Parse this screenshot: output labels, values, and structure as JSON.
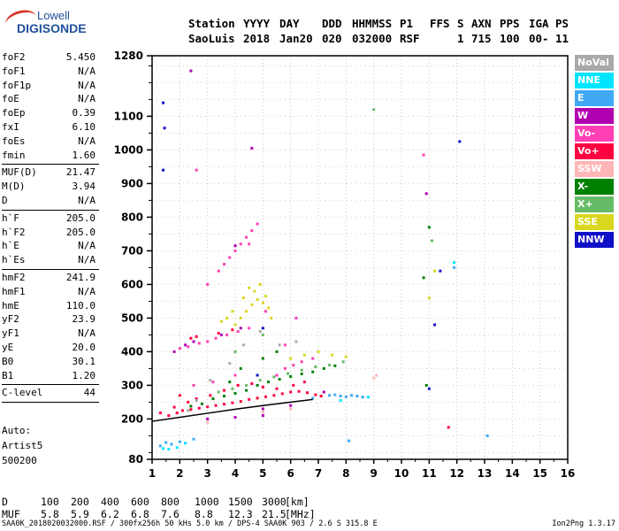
{
  "logo": {
    "line1": "Lowell",
    "line2": "DIGISONDE"
  },
  "header": {
    "labels": [
      "Station",
      "YYYY",
      "DAY",
      "DDD",
      "HHMMSS",
      "P1",
      "FFS",
      "S",
      "AXN",
      "PPS",
      "IGA",
      "PS"
    ],
    "values": [
      "SaoLuis",
      "2018",
      "Jan20",
      "020",
      "032000",
      "RSF",
      "",
      "1",
      "715",
      "100",
      "00-",
      "11"
    ]
  },
  "params": [
    {
      "name": "foF2",
      "value": "5.450"
    },
    {
      "name": "foF1",
      "value": "N/A"
    },
    {
      "name": "foF1p",
      "value": "N/A"
    },
    {
      "name": "foE",
      "value": "N/A"
    },
    {
      "name": "foEp",
      "value": "0.39"
    },
    {
      "name": "fxI",
      "value": "6.10"
    },
    {
      "name": "foEs",
      "value": "N/A"
    },
    {
      "name": "fmin",
      "value": "1.60"
    },
    {
      "name": "MUF(D)",
      "value": "21.47"
    },
    {
      "name": "M(D)",
      "value": "3.94"
    },
    {
      "name": "D",
      "value": "N/A"
    },
    {
      "name": "h`F",
      "value": "205.0"
    },
    {
      "name": "h`F2",
      "value": "205.0"
    },
    {
      "name": "h`E",
      "value": "N/A"
    },
    {
      "name": "h`Es",
      "value": "N/A"
    },
    {
      "name": "hmF2",
      "value": "241.9"
    },
    {
      "name": "hmF1",
      "value": "N/A"
    },
    {
      "name": "hmE",
      "value": "110.0"
    },
    {
      "name": "yF2",
      "value": "23.9"
    },
    {
      "name": "yF1",
      "value": "N/A"
    },
    {
      "name": "yE",
      "value": "20.0"
    },
    {
      "name": "B0",
      "value": "30.1"
    },
    {
      "name": "B1",
      "value": "1.20"
    },
    {
      "name": "C-level",
      "value": "44"
    }
  ],
  "autoscale": {
    "l1": "Auto:",
    "l2": "Artist5",
    "l3": "500200"
  },
  "legend": [
    {
      "label": "NoVal",
      "color": "#a9a9a9"
    },
    {
      "label": "NNE",
      "color": "#00e5ff"
    },
    {
      "label": "E",
      "color": "#3fa9f5"
    },
    {
      "label": "W",
      "color": "#b000b0"
    },
    {
      "label": "Vo-",
      "color": "#ff3fb4"
    },
    {
      "label": "Vo+",
      "color": "#ff0040"
    },
    {
      "label": "SSW",
      "color": "#ffb6b6"
    },
    {
      "label": "X-",
      "color": "#008000"
    },
    {
      "label": "X+",
      "color": "#66bb66"
    },
    {
      "label": "SSE",
      "color": "#d8d820"
    },
    {
      "label": "NNW",
      "color": "#1010c8"
    }
  ],
  "muf_table": {
    "d_label": "D",
    "d_values": [
      "100",
      "200",
      "400",
      "600",
      "800",
      "1000",
      "1500",
      "3000"
    ],
    "d_unit": "[km]",
    "muf_label": "MUF",
    "muf_values": [
      "5.8",
      "5.9",
      "6.2",
      "6.8",
      "7.6",
      "8.8",
      "12.3",
      "21.5"
    ],
    "muf_unit": "[MHz]"
  },
  "footer": "SAA0K_2018020032000.RSF / 300fx256h 50 kHs 5.0 km / DPS-4 SAA0K 903 / 2.6 S 315.8 E",
  "version": "Ion2Png 1.3.17",
  "chart_data": {
    "type": "scatter",
    "title": "",
    "xlabel": "",
    "ylabel": "",
    "xlim": [
      1,
      16
    ],
    "ylim": [
      80,
      1280
    ],
    "x_ticks": [
      1,
      2,
      3,
      4,
      5,
      6,
      7,
      8,
      9,
      10,
      11,
      12,
      13,
      14,
      15,
      16
    ],
    "y_ticks": [
      80,
      200,
      300,
      400,
      500,
      600,
      700,
      800,
      900,
      1000,
      1100,
      1280
    ],
    "grid": true,
    "legend_position": "right",
    "trace_line": [
      [
        1.0,
        193
      ],
      [
        2.0,
        205
      ],
      [
        3.0,
        217
      ],
      [
        4.0,
        229
      ],
      [
        5.0,
        240
      ],
      [
        6.0,
        250
      ],
      [
        6.8,
        258
      ]
    ],
    "series": [
      {
        "name": "Vo+",
        "points": [
          [
            1.6,
            210
          ],
          [
            1.9,
            218
          ],
          [
            2.1,
            225
          ],
          [
            2.4,
            228
          ],
          [
            2.7,
            232
          ],
          [
            3.0,
            236
          ],
          [
            3.3,
            240
          ],
          [
            3.6,
            244
          ],
          [
            3.9,
            248
          ],
          [
            4.2,
            252
          ],
          [
            4.5,
            258
          ],
          [
            4.8,
            262
          ],
          [
            5.1,
            266
          ],
          [
            5.4,
            270
          ],
          [
            5.7,
            275
          ],
          [
            6.0,
            280
          ],
          [
            6.3,
            282
          ],
          [
            6.6,
            278
          ],
          [
            6.9,
            272
          ],
          [
            7.1,
            268
          ],
          [
            2.3,
            250
          ],
          [
            2.6,
            260
          ],
          [
            3.1,
            270
          ],
          [
            3.6,
            285
          ],
          [
            4.1,
            300
          ],
          [
            4.6,
            305
          ],
          [
            5.0,
            295
          ],
          [
            5.5,
            290
          ],
          [
            6.1,
            300
          ],
          [
            6.5,
            310
          ],
          [
            1.8,
            235
          ],
          [
            2.0,
            270
          ],
          [
            2.4,
            440
          ],
          [
            2.6,
            445
          ],
          [
            3.4,
            455
          ],
          [
            3.9,
            465
          ],
          [
            11.7,
            175
          ],
          [
            1.3,
            218
          ]
        ]
      },
      {
        "name": "Vo-",
        "points": [
          [
            2.0,
            410
          ],
          [
            2.3,
            415
          ],
          [
            2.7,
            425
          ],
          [
            3.0,
            430
          ],
          [
            3.3,
            440
          ],
          [
            3.7,
            450
          ],
          [
            4.1,
            460
          ],
          [
            4.5,
            470
          ],
          [
            3.4,
            640
          ],
          [
            3.6,
            660
          ],
          [
            3.8,
            680
          ],
          [
            4.0,
            700
          ],
          [
            4.2,
            720
          ],
          [
            4.4,
            740
          ],
          [
            4.6,
            760
          ],
          [
            4.8,
            780
          ],
          [
            5.5,
            330
          ],
          [
            5.8,
            350
          ],
          [
            6.1,
            360
          ],
          [
            6.4,
            370
          ],
          [
            6.8,
            380
          ],
          [
            2.5,
            300
          ],
          [
            3.2,
            310
          ],
          [
            4.0,
            330
          ],
          [
            2.6,
            940
          ],
          [
            4.5,
            720
          ],
          [
            5.1,
            520
          ],
          [
            6.2,
            500
          ],
          [
            10.8,
            985
          ],
          [
            5.8,
            420
          ],
          [
            3.0,
            600
          ]
        ]
      },
      {
        "name": "W",
        "points": [
          [
            2.2,
            420
          ],
          [
            2.5,
            430
          ],
          [
            3.5,
            450
          ],
          [
            4.2,
            470
          ],
          [
            3.0,
            200
          ],
          [
            4.0,
            205
          ],
          [
            5.0,
            210
          ],
          [
            2.4,
            1235
          ],
          [
            4.0,
            715
          ],
          [
            5.0,
            230
          ],
          [
            6.0,
            240
          ],
          [
            1.8,
            400
          ],
          [
            7.2,
            280
          ],
          [
            10.9,
            870
          ],
          [
            4.6,
            1005
          ]
        ]
      },
      {
        "name": "X-",
        "points": [
          [
            3.2,
            260
          ],
          [
            3.6,
            268
          ],
          [
            4.0,
            276
          ],
          [
            4.4,
            285
          ],
          [
            4.8,
            300
          ],
          [
            5.2,
            310
          ],
          [
            5.6,
            318
          ],
          [
            6.0,
            326
          ],
          [
            6.4,
            334
          ],
          [
            6.8,
            340
          ],
          [
            7.2,
            350
          ],
          [
            7.6,
            358
          ],
          [
            2.8,
            245
          ],
          [
            2.4,
            238
          ],
          [
            5.0,
            380
          ],
          [
            5.5,
            400
          ],
          [
            4.2,
            350
          ],
          [
            3.8,
            310
          ],
          [
            10.8,
            620
          ],
          [
            10.9,
            300
          ],
          [
            11.0,
            770
          ]
        ]
      },
      {
        "name": "X+",
        "points": [
          [
            3.4,
            280
          ],
          [
            3.9,
            290
          ],
          [
            4.4,
            300
          ],
          [
            4.9,
            315
          ],
          [
            5.4,
            325
          ],
          [
            5.9,
            335
          ],
          [
            6.4,
            345
          ],
          [
            6.9,
            355
          ],
          [
            7.4,
            360
          ],
          [
            7.9,
            370
          ],
          [
            4.0,
            400
          ],
          [
            5.0,
            450
          ],
          [
            9.0,
            1120
          ],
          [
            11.1,
            730
          ]
        ]
      },
      {
        "name": "SSE",
        "points": [
          [
            4.0,
            480
          ],
          [
            4.2,
            500
          ],
          [
            4.4,
            520
          ],
          [
            4.6,
            540
          ],
          [
            4.8,
            555
          ],
          [
            5.0,
            545
          ],
          [
            5.2,
            530
          ],
          [
            3.9,
            520
          ],
          [
            4.3,
            560
          ],
          [
            4.7,
            580
          ],
          [
            5.1,
            565
          ],
          [
            3.7,
            500
          ],
          [
            3.5,
            490
          ],
          [
            4.5,
            590
          ],
          [
            4.9,
            600
          ],
          [
            5.3,
            500
          ],
          [
            6.0,
            380
          ],
          [
            6.5,
            390
          ],
          [
            7.0,
            400
          ],
          [
            7.5,
            390
          ],
          [
            8.0,
            385
          ],
          [
            11.0,
            560
          ],
          [
            11.2,
            640
          ]
        ]
      },
      {
        "name": "E",
        "points": [
          [
            7.4,
            270
          ],
          [
            7.6,
            272
          ],
          [
            7.8,
            268
          ],
          [
            8.0,
            266
          ],
          [
            8.2,
            270
          ],
          [
            8.4,
            268
          ],
          [
            8.6,
            265
          ],
          [
            6.8,
            262
          ],
          [
            1.5,
            130
          ],
          [
            1.7,
            125
          ],
          [
            2.0,
            132
          ],
          [
            1.3,
            120
          ],
          [
            8.1,
            135
          ],
          [
            13.1,
            150
          ],
          [
            11.9,
            650
          ],
          [
            2.5,
            140
          ]
        ]
      },
      {
        "name": "NNE",
        "points": [
          [
            1.4,
            112
          ],
          [
            1.6,
            110
          ],
          [
            1.9,
            115
          ],
          [
            2.2,
            128
          ],
          [
            7.8,
            255
          ],
          [
            8.8,
            265
          ],
          [
            11.9,
            665
          ]
        ]
      },
      {
        "name": "SSW",
        "points": [
          [
            9.0,
            322
          ],
          [
            9.1,
            330
          ],
          [
            3.0,
            190
          ],
          [
            5.0,
            220
          ],
          [
            6.0,
            230
          ]
        ]
      },
      {
        "name": "NNW",
        "points": [
          [
            1.4,
            1140
          ],
          [
            1.45,
            1065
          ],
          [
            1.4,
            940
          ],
          [
            12.1,
            1025
          ],
          [
            11.2,
            480
          ],
          [
            11.4,
            640
          ],
          [
            11.0,
            290
          ],
          [
            5.0,
            470
          ],
          [
            4.8,
            330
          ]
        ]
      },
      {
        "name": "NoVal",
        "points": [
          [
            2.3,
            225
          ],
          [
            2.6,
            255
          ],
          [
            3.1,
            315
          ],
          [
            3.8,
            365
          ],
          [
            4.3,
            420
          ],
          [
            4.9,
            460
          ],
          [
            5.6,
            420
          ],
          [
            6.2,
            430
          ]
        ]
      }
    ]
  }
}
